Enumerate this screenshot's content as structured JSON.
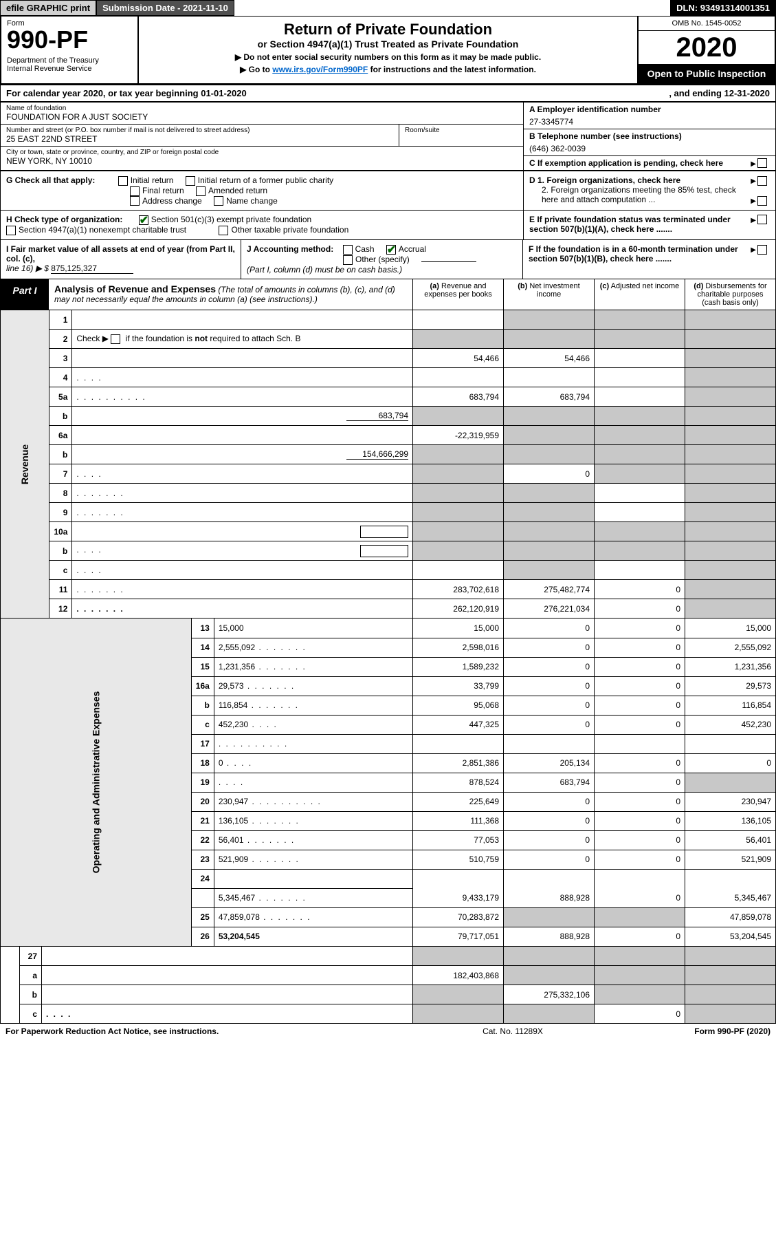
{
  "topbar": {
    "efile": "efile GRAPHIC print",
    "submission": "Submission Date - 2021-11-10",
    "dln": "DLN: 93491314001351"
  },
  "header": {
    "form_label": "Form",
    "form_number": "990-PF",
    "dept1": "Department of the Treasury",
    "dept2": "Internal Revenue Service",
    "title": "Return of Private Foundation",
    "subtitle": "or Section 4947(a)(1) Trust Treated as Private Foundation",
    "instruct1": "▶ Do not enter social security numbers on this form as it may be made public.",
    "instruct2_pre": "▶ Go to ",
    "instruct2_link": "www.irs.gov/Form990PF",
    "instruct2_post": " for instructions and the latest information.",
    "omb": "OMB No. 1545-0052",
    "year": "2020",
    "open": "Open to Public Inspection"
  },
  "calyear": {
    "text": "For calendar year 2020, or tax year beginning 01-01-2020",
    "ending": ", and ending 12-31-2020"
  },
  "info": {
    "name_lbl": "Name of foundation",
    "name_val": "FOUNDATION FOR A JUST SOCIETY",
    "addr_lbl": "Number and street (or P.O. box number if mail is not delivered to street address)",
    "addr_val": "25 EAST 22ND STREET",
    "room_lbl": "Room/suite",
    "city_lbl": "City or town, state or province, country, and ZIP or foreign postal code",
    "city_val": "NEW YORK, NY  10010",
    "a_lbl": "A Employer identification number",
    "a_val": "27-3345774",
    "b_lbl": "B Telephone number (see instructions)",
    "b_val": "(646) 362-0039",
    "c_lbl": "C If exemption application is pending, check here"
  },
  "section_g": {
    "g_label": "G Check all that apply:",
    "initial": "Initial return",
    "initial_former": "Initial return of a former public charity",
    "final": "Final return",
    "amended": "Amended return",
    "addr_change": "Address change",
    "name_change": "Name change",
    "h_label": "H Check type of organization:",
    "h_501c3": "Section 501(c)(3) exempt private foundation",
    "h_4947": "Section 4947(a)(1) nonexempt charitable trust",
    "h_other": "Other taxable private foundation",
    "d1": "D 1. Foreign organizations, check here",
    "d2": "2. Foreign organizations meeting the 85% test, check here and attach computation ...",
    "e": "E  If private foundation status was terminated under section 507(b)(1)(A), check here .......",
    "i_lbl": "I Fair market value of all assets at end of year (from Part II, col. (c),",
    "i_line": "line 16) ▶ $",
    "i_val": "875,125,327",
    "j_lbl": "J Accounting method:",
    "j_cash": "Cash",
    "j_accrual": "Accrual",
    "j_other": "Other (specify)",
    "j_note": "(Part I, column (d) must be on cash basis.)",
    "f": "F  If the foundation is in a 60-month termination under section 507(b)(1)(B), check here ......."
  },
  "part1": {
    "label": "Part I",
    "title": "Analysis of Revenue and Expenses",
    "note": " (The total of amounts in columns (b), (c), and (d) may not necessarily equal the amounts in column (a) (see instructions).)",
    "col_a": "(a)   Revenue and expenses per books",
    "col_b": "(b)   Net investment income",
    "col_c": "(c)   Adjusted net income",
    "col_d": "(d)   Disbursements for charitable purposes (cash basis only)"
  },
  "sidebars": {
    "revenue": "Revenue",
    "opex": "Operating and Administrative Expenses"
  },
  "rows": [
    {
      "n": "1",
      "d": "",
      "a": "",
      "b": "",
      "c": "",
      "sa": false,
      "sb": true,
      "sc": true,
      "sd": true
    },
    {
      "n": "2",
      "d": "",
      "a": "",
      "b": "",
      "c": "",
      "sa": true,
      "sb": true,
      "sc": true,
      "sd": true,
      "dotted_below": true,
      "is_check": true
    },
    {
      "n": "3",
      "d": "",
      "a": "54,466",
      "b": "54,466",
      "c": "",
      "sd": true
    },
    {
      "n": "4",
      "d": "",
      "a": "",
      "b": "",
      "c": "",
      "dots": "short",
      "sd": true
    },
    {
      "n": "5a",
      "d": "",
      "a": "683,794",
      "b": "683,794",
      "c": "",
      "dots": "long",
      "sd": true
    },
    {
      "n": "b",
      "d": "",
      "a": "",
      "b": "",
      "c": "",
      "sa": true,
      "sb": true,
      "sc": true,
      "sd": true,
      "inline_val": "683,794"
    },
    {
      "n": "6a",
      "d": "",
      "a": "-22,319,959",
      "b": "",
      "c": "",
      "sb": true,
      "sc": true,
      "sd": true
    },
    {
      "n": "b",
      "d": "",
      "a": "",
      "b": "",
      "c": "",
      "sa": true,
      "sb": true,
      "sc": true,
      "sd": true,
      "inline_val": "154,666,299"
    },
    {
      "n": "7",
      "d": "",
      "a": "",
      "b": "0",
      "c": "",
      "sa": true,
      "sc": true,
      "sd": true,
      "dots": "short"
    },
    {
      "n": "8",
      "d": "",
      "a": "",
      "b": "",
      "c": "",
      "sa": true,
      "sb": true,
      "sd": true,
      "dots": "med"
    },
    {
      "n": "9",
      "d": "",
      "a": "",
      "b": "",
      "c": "",
      "sa": true,
      "sb": true,
      "sd": true,
      "dots": "med"
    },
    {
      "n": "10a",
      "d": "",
      "a": "",
      "b": "",
      "c": "",
      "sa": true,
      "sb": true,
      "sc": true,
      "sd": true,
      "inline_box": true
    },
    {
      "n": "b",
      "d": "",
      "a": "",
      "b": "",
      "c": "",
      "sa": true,
      "sb": true,
      "sc": true,
      "sd": true,
      "dots": "short",
      "inline_box": true
    },
    {
      "n": "c",
      "d": "",
      "a": "",
      "b": "",
      "c": "",
      "sb": true,
      "sd": true,
      "dots": "short"
    },
    {
      "n": "11",
      "d": "",
      "a": "283,702,618",
      "b": "275,482,774",
      "c": "0",
      "dots": "med",
      "sd": true
    },
    {
      "n": "12",
      "d": "",
      "a": "262,120,919",
      "b": "276,221,034",
      "c": "0",
      "dots": "med",
      "bold": true,
      "sd": true
    }
  ],
  "opex_rows": [
    {
      "n": "13",
      "d": "15,000",
      "a": "15,000",
      "b": "0",
      "c": "0"
    },
    {
      "n": "14",
      "d": "2,555,092",
      "a": "2,598,016",
      "b": "0",
      "c": "0",
      "dots": "med"
    },
    {
      "n": "15",
      "d": "1,231,356",
      "a": "1,589,232",
      "b": "0",
      "c": "0",
      "dots": "med"
    },
    {
      "n": "16a",
      "d": "29,573",
      "a": "33,799",
      "b": "0",
      "c": "0",
      "dots": "med"
    },
    {
      "n": "b",
      "d": "116,854",
      "a": "95,068",
      "b": "0",
      "c": "0",
      "dots": "med"
    },
    {
      "n": "c",
      "d": "452,230",
      "a": "447,325",
      "b": "0",
      "c": "0",
      "dots": "short"
    },
    {
      "n": "17",
      "d": "",
      "a": "",
      "b": "",
      "c": "",
      "dots": "long"
    },
    {
      "n": "18",
      "d": "0",
      "a": "2,851,386",
      "b": "205,134",
      "c": "0",
      "dots": "short"
    },
    {
      "n": "19",
      "d": "",
      "a": "878,524",
      "b": "683,794",
      "c": "0",
      "dots": "short",
      "sd": true
    },
    {
      "n": "20",
      "d": "230,947",
      "a": "225,649",
      "b": "0",
      "c": "0",
      "dots": "long"
    },
    {
      "n": "21",
      "d": "136,105",
      "a": "111,368",
      "b": "0",
      "c": "0",
      "dots": "med"
    },
    {
      "n": "22",
      "d": "56,401",
      "a": "77,053",
      "b": "0",
      "c": "0",
      "dots": "med"
    },
    {
      "n": "23",
      "d": "521,909",
      "a": "510,759",
      "b": "0",
      "c": "0",
      "dots": "med"
    },
    {
      "n": "24",
      "d": "",
      "a": "",
      "b": "",
      "c": "",
      "bold": true,
      "no_amts": true
    },
    {
      "n": "",
      "d": "5,345,467",
      "a": "9,433,179",
      "b": "888,928",
      "c": "0",
      "dots": "med"
    },
    {
      "n": "25",
      "d": "47,859,078",
      "a": "70,283,872",
      "b": "",
      "c": "",
      "dots": "med",
      "sb": true,
      "sc": true
    },
    {
      "n": "26",
      "d": "53,204,545",
      "a": "79,717,051",
      "b": "888,928",
      "c": "0",
      "bold": true
    }
  ],
  "final_rows": [
    {
      "n": "27",
      "d": "",
      "a": "",
      "b": "",
      "c": "",
      "sa": true,
      "sb": true,
      "sc": true,
      "sd": true
    },
    {
      "n": "a",
      "d": "",
      "a": "182,403,868",
      "b": "",
      "c": "",
      "bold": true,
      "sb": true,
      "sc": true,
      "sd": true
    },
    {
      "n": "b",
      "d": "",
      "a": "",
      "b": "275,332,106",
      "c": "",
      "bold": true,
      "sa": true,
      "sc": true,
      "sd": true
    },
    {
      "n": "c",
      "d": "",
      "a": "",
      "b": "",
      "c": "0",
      "bold": true,
      "sa": true,
      "sb": true,
      "sd": true,
      "dots": "short"
    }
  ],
  "footer": {
    "l": "For Paperwork Reduction Act Notice, see instructions.",
    "c": "Cat. No. 11289X",
    "r": "Form 990-PF (2020)"
  },
  "colors": {
    "shaded": "#c8c8c8",
    "side": "#e8e8e8",
    "topdark": "#505050",
    "black": "#000000",
    "link": "#0066cc",
    "check_green": "#006600"
  }
}
